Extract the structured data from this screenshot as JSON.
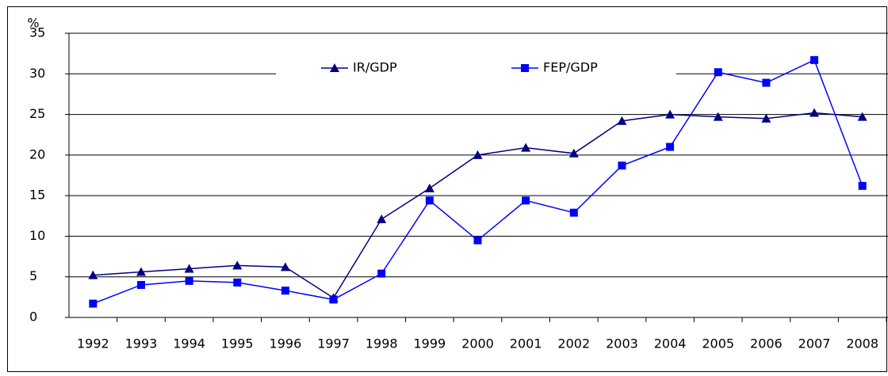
{
  "chart_data": {
    "type": "line",
    "y_label": "%",
    "categories": [
      "1992",
      "1993",
      "1994",
      "1995",
      "1996",
      "1997",
      "1998",
      "1999",
      "2000",
      "2001",
      "2002",
      "2003",
      "2004",
      "2005",
      "2006",
      "2007",
      "2008"
    ],
    "series": [
      {
        "name": "IR/GDP",
        "color": "#000080",
        "marker": "triangle",
        "values": [
          5.2,
          5.6,
          6.0,
          6.4,
          6.2,
          2.4,
          12.1,
          15.9,
          20.0,
          20.9,
          20.2,
          24.2,
          25.0,
          24.7,
          24.5,
          25.2,
          24.7
        ]
      },
      {
        "name": "FEP/GDP",
        "color": "#0000ff",
        "marker": "square",
        "values": [
          1.7,
          4.0,
          4.5,
          4.3,
          3.3,
          2.2,
          5.4,
          14.4,
          9.5,
          14.4,
          12.9,
          18.7,
          21.0,
          30.2,
          28.9,
          31.7,
          16.2
        ]
      }
    ],
    "ylim": [
      0,
      35
    ],
    "yticks": [
      0,
      5,
      10,
      15,
      20,
      25,
      30,
      35
    ],
    "grid": true,
    "legend": "top"
  }
}
